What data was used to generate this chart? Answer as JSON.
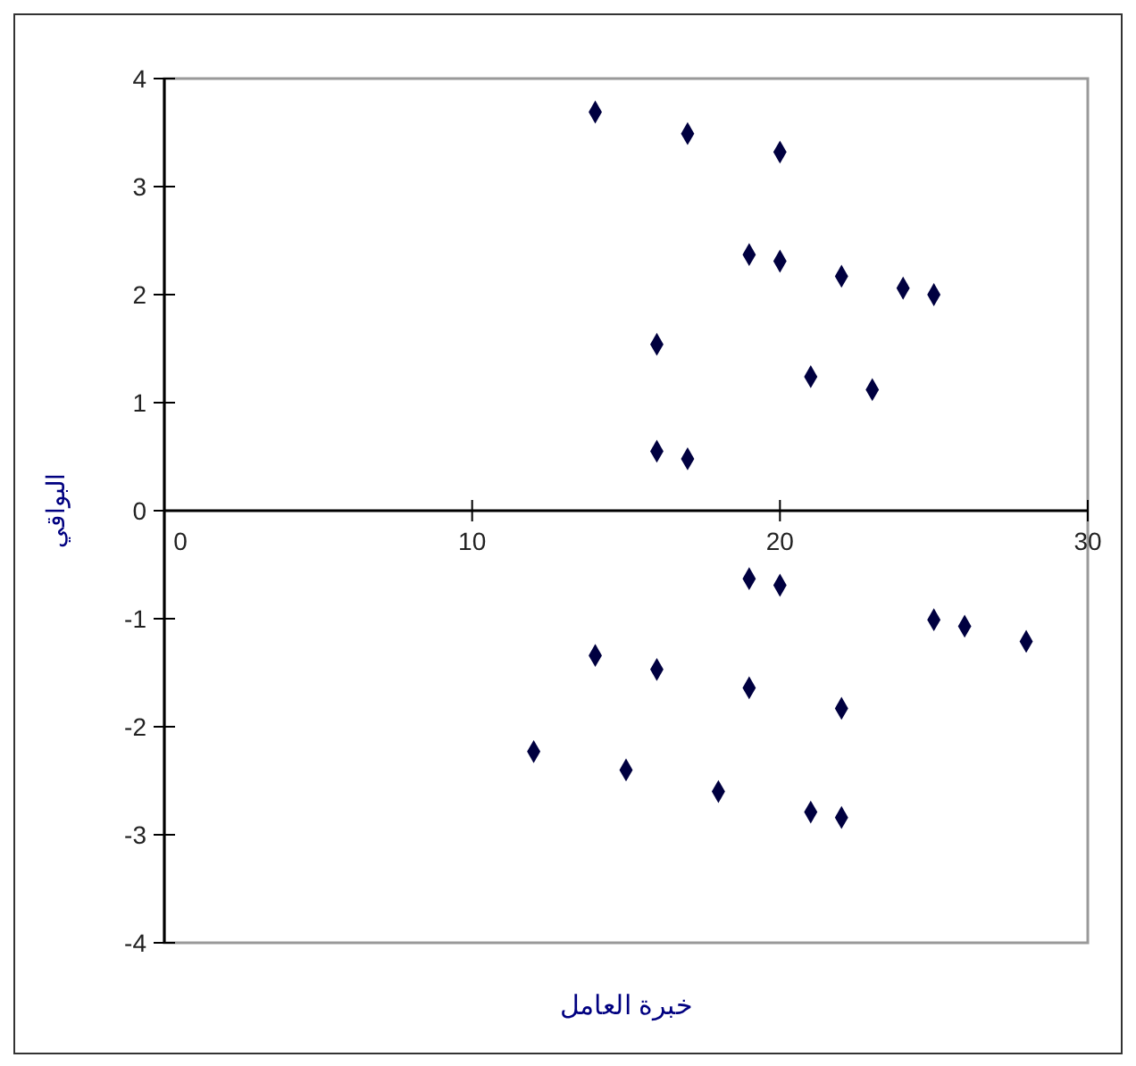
{
  "chart_data": {
    "type": "scatter",
    "xlabel": "خبرة العامل",
    "ylabel": "البواقي",
    "xlim": [
      0,
      30
    ],
    "xticks": [
      0,
      10,
      20,
      30
    ],
    "ylim": [
      -4,
      4
    ],
    "yticks": [
      -4,
      -3,
      -2,
      -1,
      0,
      1,
      2,
      3,
      4
    ],
    "marker": "diamond",
    "series": [
      {
        "color": "#000040",
        "x": [
          14,
          17,
          20,
          19,
          20,
          22,
          24,
          25,
          16,
          21,
          23,
          16,
          17,
          19,
          20,
          25,
          26,
          28,
          14,
          16,
          19,
          22,
          12,
          15,
          18,
          21,
          22
        ],
        "values": [
          3.69,
          3.49,
          3.32,
          2.37,
          2.31,
          2.17,
          2.06,
          2.0,
          1.54,
          1.24,
          1.12,
          0.55,
          0.48,
          -0.63,
          -0.69,
          -1.01,
          -1.07,
          -1.21,
          -1.34,
          -1.47,
          -1.64,
          -1.83,
          -2.23,
          -2.4,
          -2.6,
          -2.79,
          -2.84
        ]
      }
    ]
  }
}
